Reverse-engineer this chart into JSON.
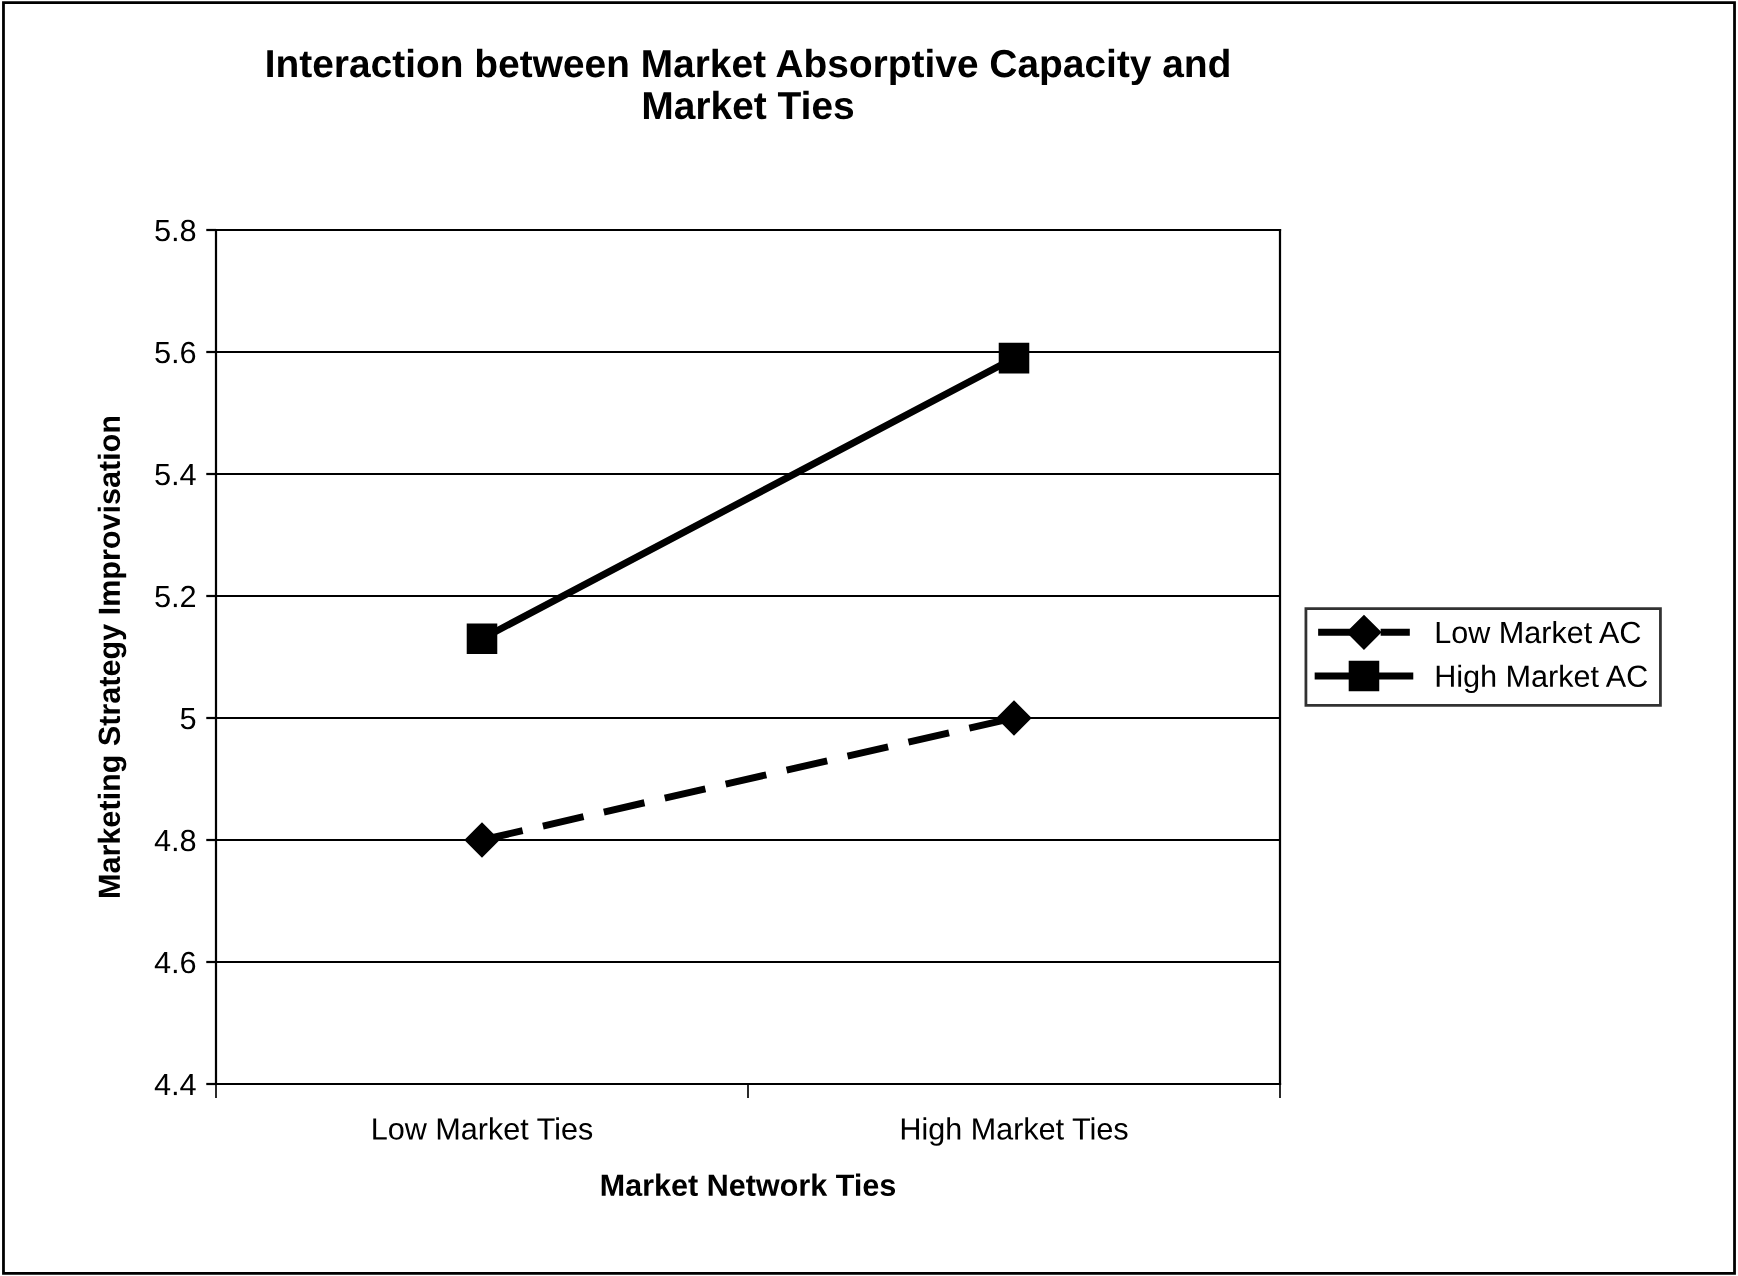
{
  "chart_data": {
    "type": "line",
    "title": "Interaction between Market Absorptive Capacity and\nMarket Ties",
    "xlabel": "Market Network Ties",
    "ylabel": "Marketing Strategy Improvisation",
    "categories": [
      "Low Market Ties",
      "High Market Ties"
    ],
    "series": [
      {
        "name": "Low Market AC",
        "color": "#000000",
        "values": [
          4.8,
          5.0
        ],
        "marker": "diamond",
        "line_style": "dashed"
      },
      {
        "name": "High Market AC",
        "color": "#000000",
        "values": [
          5.13,
          5.59
        ],
        "marker": "square",
        "line_style": "solid"
      }
    ],
    "ylim": [
      4.4,
      5.8
    ],
    "yticks": [
      4.4,
      4.6,
      4.8,
      5,
      5.2,
      5.4,
      5.6,
      5.8
    ],
    "grid": "y",
    "legend": "right"
  }
}
